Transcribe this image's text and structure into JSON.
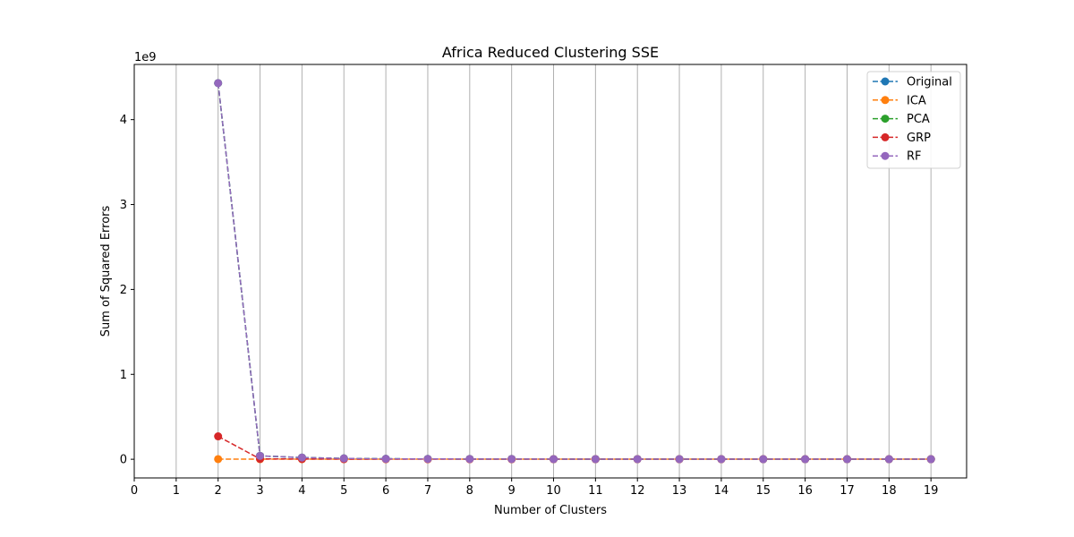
{
  "chart_data": {
    "type": "line",
    "title": "Africa Reduced Clustering SSE",
    "xlabel": "Number of Clusters",
    "ylabel": "Sum of Squared Errors",
    "y_offset_text": "1e9",
    "x_ticks": [
      0,
      1,
      2,
      3,
      4,
      5,
      6,
      7,
      8,
      9,
      10,
      11,
      12,
      13,
      14,
      15,
      16,
      17,
      18,
      19
    ],
    "y_ticks": [
      0,
      1,
      2,
      3,
      4
    ],
    "xlim": [
      0,
      19.85
    ],
    "ylim": [
      -0.22,
      4.65
    ],
    "grid": "vertical",
    "legend_position": "top-right",
    "x": [
      2,
      3,
      4,
      5,
      6,
      7,
      8,
      9,
      10,
      11,
      12,
      13,
      14,
      15,
      16,
      17,
      18,
      19
    ],
    "series": [
      {
        "name": "Original",
        "color": "#1f77b4",
        "values": [
          4.43,
          0.04,
          0.02,
          0.01,
          0.005,
          0.004,
          0.003,
          0.003,
          0.002,
          0.002,
          0.002,
          0.002,
          0.002,
          0.001,
          0.001,
          0.001,
          0.001,
          0.001
        ]
      },
      {
        "name": "ICA",
        "color": "#ff7f0e",
        "values": [
          0.002,
          0.001,
          0.001,
          0.001,
          0.001,
          0.001,
          0.001,
          0.001,
          0.001,
          0.001,
          0.001,
          0.001,
          0.001,
          0.001,
          0.001,
          0.001,
          0.001,
          0.001
        ]
      },
      {
        "name": "PCA",
        "color": "#2ca02c",
        "values": [
          4.43,
          0.04,
          0.02,
          0.01,
          0.005,
          0.004,
          0.003,
          0.003,
          0.002,
          0.002,
          0.002,
          0.002,
          0.002,
          0.001,
          0.001,
          0.001,
          0.001,
          0.001
        ]
      },
      {
        "name": "GRP",
        "color": "#d62728",
        "values": [
          0.27,
          0.004,
          0.003,
          0.002,
          0.002,
          0.001,
          0.001,
          0.001,
          0.001,
          0.001,
          0.001,
          0.001,
          0.001,
          0.001,
          0.001,
          0.001,
          0.001,
          0.001
        ]
      },
      {
        "name": "RF",
        "color": "#9467bd",
        "values": [
          4.43,
          0.04,
          0.02,
          0.01,
          0.005,
          0.004,
          0.003,
          0.003,
          0.002,
          0.002,
          0.002,
          0.002,
          0.002,
          0.001,
          0.001,
          0.001,
          0.001,
          0.001
        ]
      }
    ]
  }
}
